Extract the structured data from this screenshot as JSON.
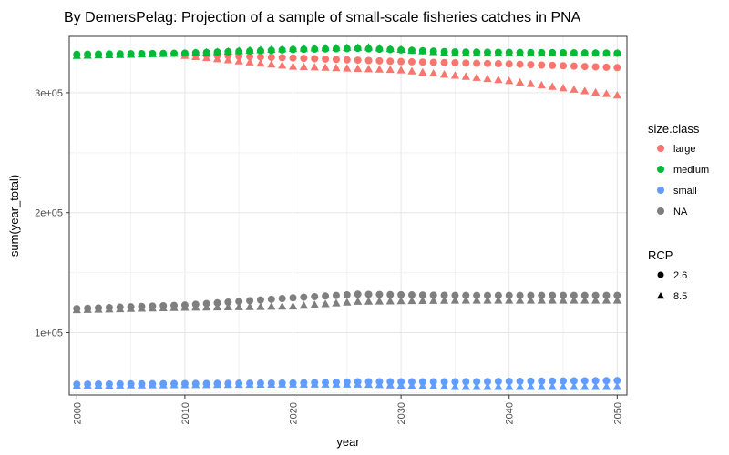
{
  "chart_data": {
    "type": "scatter",
    "title": "By DemersPelag: Projection of a sample of small-scale fisheries catches in PNA",
    "xlabel": "year",
    "ylabel": "sum(year_total)",
    "xlim": [
      1999.3,
      2050.9
    ],
    "ylim": [
      48000,
      347000
    ],
    "x_ticks": [
      2000,
      2010,
      2020,
      2030,
      2040,
      2050
    ],
    "x_tick_labels": [
      "2000",
      "2010",
      "2020",
      "2030",
      "2040",
      "2050"
    ],
    "y_ticks": [
      100000,
      200000,
      300000
    ],
    "y_tick_labels": [
      "1e+05",
      "2e+05",
      "3e+05"
    ],
    "grid": true,
    "legend_placement": "right",
    "legends": [
      {
        "title": "size.class",
        "entries": [
          {
            "label": "large",
            "color": "#F8766D"
          },
          {
            "label": "medium",
            "color": "#00BA38"
          },
          {
            "label": "small",
            "color": "#619CFF"
          },
          {
            "label": "NA",
            "color": "#7F7F7F"
          }
        ]
      },
      {
        "title": "RCP",
        "entries": [
          {
            "label": "2.6",
            "shape": "circle"
          },
          {
            "label": "8.5",
            "shape": "triangle"
          }
        ]
      }
    ],
    "series_x": {
      "start": 2000,
      "end": 2050
    },
    "series": [
      {
        "size_class": "medium",
        "rcp": "2.6",
        "color": "#00BA38",
        "shape": "circle",
        "anchors": [
          [
            2000,
            332000
          ],
          [
            2010,
            333000
          ],
          [
            2020,
            336000
          ],
          [
            2026,
            337000
          ],
          [
            2035,
            334000
          ],
          [
            2050,
            333000
          ]
        ]
      },
      {
        "size_class": "medium",
        "rcp": "8.5",
        "color": "#00BA38",
        "shape": "triangle",
        "anchors": [
          [
            2000,
            331000
          ],
          [
            2010,
            333000
          ],
          [
            2020,
            337000
          ],
          [
            2027,
            338000
          ],
          [
            2035,
            333000
          ],
          [
            2050,
            333000
          ]
        ]
      },
      {
        "size_class": "large",
        "rcp": "2.6",
        "color": "#F8766D",
        "shape": "circle",
        "anchors": [
          [
            2010,
            332000
          ],
          [
            2020,
            329000
          ],
          [
            2030,
            326000
          ],
          [
            2040,
            324000
          ],
          [
            2050,
            321000
          ]
        ]
      },
      {
        "size_class": "large",
        "rcp": "8.5",
        "color": "#F8766D",
        "shape": "triangle",
        "anchors": [
          [
            2010,
            331000
          ],
          [
            2020,
            322000
          ],
          [
            2030,
            319000
          ],
          [
            2040,
            310000
          ],
          [
            2050,
            298000
          ]
        ]
      },
      {
        "size_class": "NA",
        "rcp": "2.6",
        "color": "#7F7F7F",
        "shape": "circle",
        "anchors": [
          [
            2000,
            120000
          ],
          [
            2010,
            123000
          ],
          [
            2020,
            129000
          ],
          [
            2026,
            132000
          ],
          [
            2035,
            131000
          ],
          [
            2050,
            131000
          ]
        ]
      },
      {
        "size_class": "NA",
        "rcp": "8.5",
        "color": "#7F7F7F",
        "shape": "triangle",
        "anchors": [
          [
            2000,
            119000
          ],
          [
            2010,
            121000
          ],
          [
            2020,
            122000
          ],
          [
            2026,
            126000
          ],
          [
            2035,
            127000
          ],
          [
            2050,
            127000
          ]
        ]
      },
      {
        "size_class": "small",
        "rcp": "2.6",
        "color": "#619CFF",
        "shape": "circle",
        "anchors": [
          [
            2000,
            57000
          ],
          [
            2010,
            57500
          ],
          [
            2020,
            58000
          ],
          [
            2026,
            59000
          ],
          [
            2035,
            59000
          ],
          [
            2050,
            60000
          ]
        ]
      },
      {
        "size_class": "small",
        "rcp": "8.5",
        "color": "#619CFF",
        "shape": "triangle",
        "anchors": [
          [
            2000,
            56000
          ],
          [
            2010,
            56500
          ],
          [
            2020,
            57000
          ],
          [
            2026,
            57000
          ],
          [
            2035,
            55000
          ],
          [
            2050,
            55000
          ]
        ]
      }
    ]
  }
}
